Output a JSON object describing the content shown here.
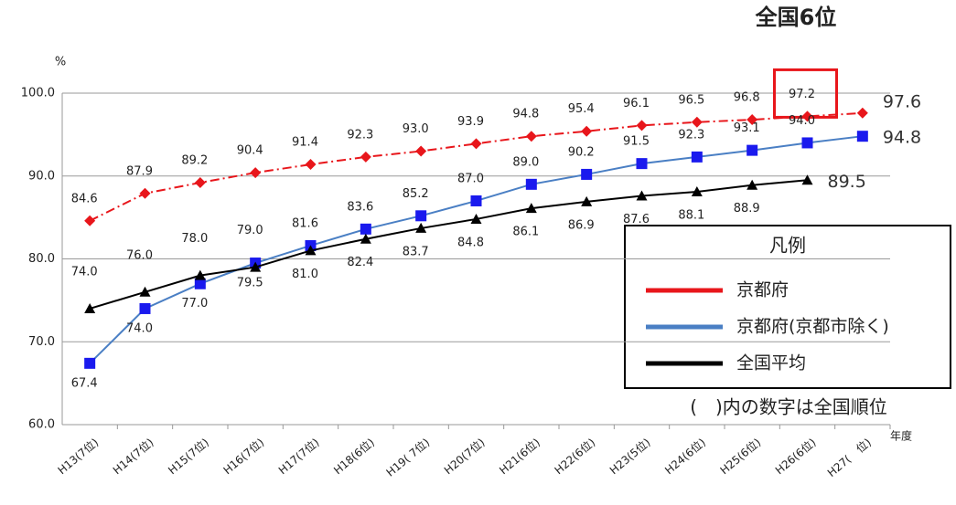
{
  "chart_data": {
    "type": "line",
    "y_unit": "%",
    "x_unit": "年度",
    "annotation": "全国6位",
    "legend_title": "凡例",
    "note": "(　)内の数字は全国順位",
    "categories": [
      "H13(7位)",
      "H14(7位)",
      "H15(7位)",
      "H16(7位)",
      "H17(7位)",
      "H18(6位)",
      "H19( 7位)",
      "H20(7位)",
      "H21(6位)",
      "H22(6位)",
      "H23(5位)",
      "H24(6位)",
      "H25(6位)",
      "H26(6位)",
      "H27(　位)"
    ],
    "series": [
      {
        "name": "京都府",
        "color": "#e8161b",
        "marker": "diamond",
        "dash": "dashdot",
        "values": [
          84.6,
          87.9,
          89.2,
          90.4,
          91.4,
          92.3,
          93.0,
          93.9,
          94.8,
          95.4,
          96.1,
          96.5,
          96.8,
          97.2,
          97.6
        ],
        "value_labels": [
          "84.6",
          "87.9",
          "89.2",
          "90.4",
          "91.4",
          "92.3",
          "93.0",
          "93.9",
          "94.8",
          "95.4",
          "96.1",
          "96.5",
          "96.8",
          "97.2",
          "97.6"
        ]
      },
      {
        "name": "京都府(京都市除く)",
        "color": "#4a7fc4",
        "marker": "square",
        "marker_color": "#1a1aee",
        "values": [
          67.4,
          74.0,
          77.0,
          79.5,
          81.6,
          83.6,
          85.2,
          87.0,
          89.0,
          90.2,
          91.5,
          92.3,
          93.1,
          94.0,
          94.8
        ],
        "value_labels": [
          "67.4",
          "74.0",
          "77.0",
          "79.5",
          "81.6",
          "83.6",
          "85.2",
          "87.0",
          "89.0",
          "90.2",
          "91.5",
          "92.3",
          "93.1",
          "94.0",
          "94.8"
        ]
      },
      {
        "name": "全国平均",
        "color": "#000000",
        "marker": "triangle",
        "values": [
          74.0,
          76.0,
          78.0,
          79.0,
          81.0,
          82.4,
          83.7,
          84.8,
          86.1,
          86.9,
          87.6,
          88.1,
          88.9,
          89.5,
          null
        ],
        "value_labels": [
          "74.0",
          "76.0",
          "78.0",
          "79.0",
          "81.0",
          "82.4",
          "83.7",
          "84.8",
          "86.1",
          "86.9",
          "87.6",
          "88.1",
          "88.9",
          "89.5",
          null
        ]
      }
    ],
    "ylim": [
      60,
      100
    ],
    "yticks": [
      {
        "value": 60,
        "label": "60.0"
      },
      {
        "value": 70,
        "label": "70.0"
      },
      {
        "value": 80,
        "label": "80.0"
      },
      {
        "value": 90,
        "label": "90.0"
      },
      {
        "value": 100,
        "label": "100.0"
      }
    ],
    "grid": true
  }
}
